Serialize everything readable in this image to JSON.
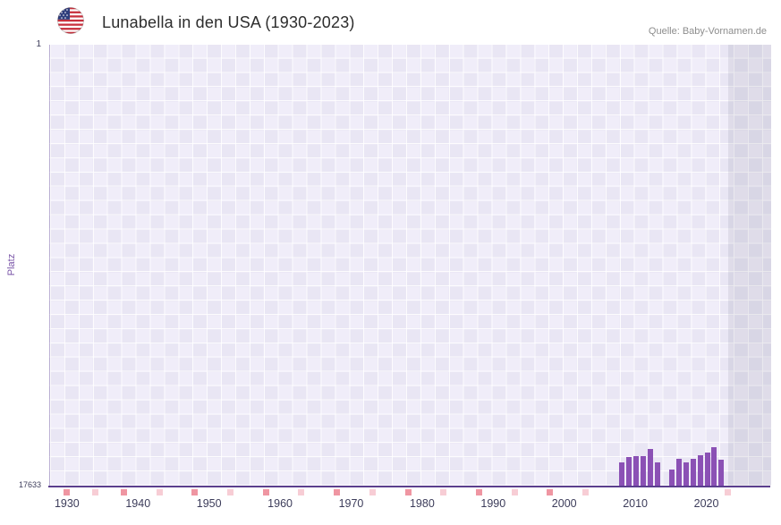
{
  "header": {
    "title": "Lunabella in den USA (1930-2023)",
    "source": "Quelle: Baby-Vornamen.de",
    "flag_icon": "us-flag-icon"
  },
  "chart_data": {
    "type": "bar",
    "title": "Lunabella in den USA (1930-2023)",
    "xlabel": "",
    "ylabel": "Platz",
    "y_axis": {
      "min": 1,
      "max": 17633,
      "inverted": true,
      "top_label": "1",
      "bottom_label": "17633"
    },
    "x_range": [
      1927.5,
      2029
    ],
    "x_ticks": [
      1930,
      1940,
      1950,
      1960,
      1970,
      1980,
      1990,
      2000,
      2010,
      2020
    ],
    "future_band_start": 2023,
    "grid": "on",
    "bars": [
      {
        "year": 2008,
        "rank": 16700
      },
      {
        "year": 2009,
        "rank": 16500
      },
      {
        "year": 2010,
        "rank": 16450
      },
      {
        "year": 2011,
        "rank": 16450
      },
      {
        "year": 2012,
        "rank": 16150
      },
      {
        "year": 2013,
        "rank": 16700
      },
      {
        "year": 2015,
        "rank": 17000
      },
      {
        "year": 2016,
        "rank": 16550
      },
      {
        "year": 2017,
        "rank": 16700
      },
      {
        "year": 2018,
        "rank": 16550
      },
      {
        "year": 2019,
        "rank": 16400
      },
      {
        "year": 2020,
        "rank": 16300
      },
      {
        "year": 2021,
        "rank": 16100
      },
      {
        "year": 2022,
        "rank": 16600
      }
    ],
    "no_data_markers": [
      {
        "year": 1930,
        "shade": "medium"
      },
      {
        "year": 1934,
        "shade": "light"
      },
      {
        "year": 1938,
        "shade": "medium"
      },
      {
        "year": 1943,
        "shade": "light"
      },
      {
        "year": 1948,
        "shade": "medium"
      },
      {
        "year": 1953,
        "shade": "light"
      },
      {
        "year": 1958,
        "shade": "medium"
      },
      {
        "year": 1963,
        "shade": "light"
      },
      {
        "year": 1968,
        "shade": "medium"
      },
      {
        "year": 1973,
        "shade": "light"
      },
      {
        "year": 1978,
        "shade": "medium"
      },
      {
        "year": 1983,
        "shade": "light"
      },
      {
        "year": 1988,
        "shade": "medium"
      },
      {
        "year": 1993,
        "shade": "light"
      },
      {
        "year": 1998,
        "shade": "medium"
      },
      {
        "year": 2003,
        "shade": "light"
      },
      {
        "year": 2023,
        "shade": "light"
      }
    ],
    "colors": {
      "bar": "#8b51b5",
      "axis": "#5b3f8e",
      "marker_light": "#f7cdd5",
      "marker_medium": "#ef96a2",
      "future_band": "rgba(110,110,130,0.13)"
    }
  }
}
